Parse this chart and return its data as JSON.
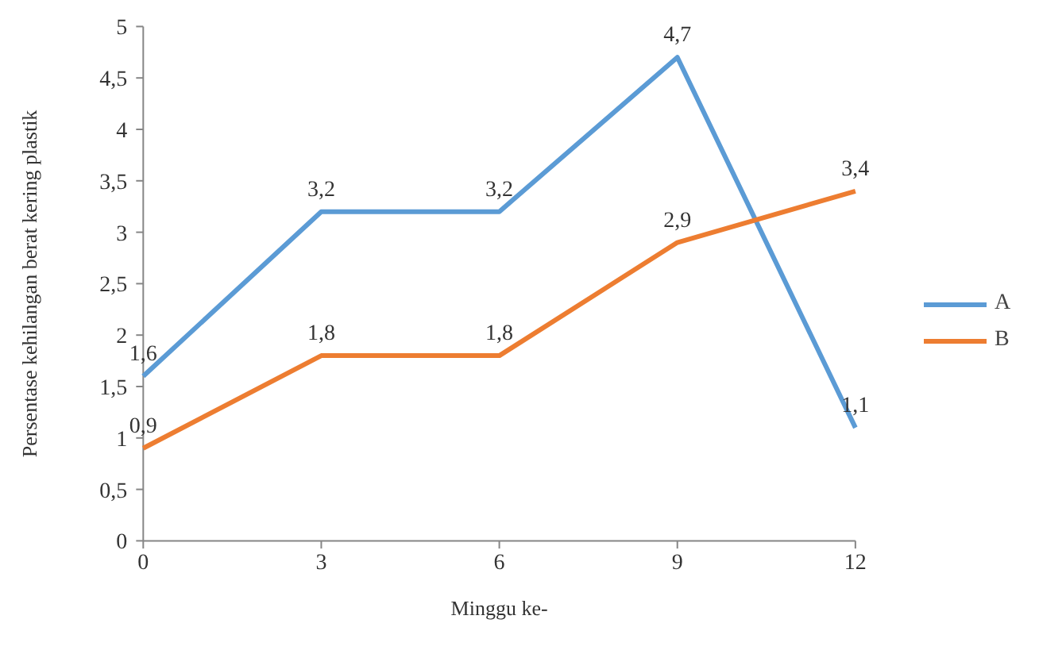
{
  "chart_data": {
    "type": "line",
    "xlabel": "Minggu ke-",
    "ylabel": "Persentase kehilangan berat kering plastik",
    "x": [
      0,
      3,
      6,
      9,
      12
    ],
    "series": [
      {
        "name": "A",
        "color": "#5b9bd5",
        "values": [
          1.6,
          3.2,
          3.2,
          4.7,
          1.1
        ],
        "value_labels": [
          "1,6",
          "3,2",
          "3,2",
          "4,7",
          "1,1"
        ]
      },
      {
        "name": "B",
        "color": "#ed7d31",
        "values": [
          0.9,
          1.8,
          1.8,
          2.9,
          3.4
        ],
        "value_labels": [
          "0,9",
          "1,8",
          "1,8",
          "2,9",
          "3,4"
        ]
      }
    ],
    "xlim": [
      0,
      12
    ],
    "xticks": [
      0,
      3,
      6,
      9,
      12
    ],
    "ylim": [
      0,
      5
    ],
    "yticks": [
      0,
      {
        "value": 0.5,
        "label": "0,5"
      },
      1,
      {
        "value": 1.5,
        "label": "1,5"
      },
      2,
      {
        "value": 2.5,
        "label": "2,5"
      },
      3,
      {
        "value": 3.5,
        "label": "3,5"
      },
      4,
      {
        "value": 4.5,
        "label": "4,5"
      },
      5
    ],
    "grid": false,
    "legend": "right",
    "marker": "none",
    "line_style": "solid"
  }
}
